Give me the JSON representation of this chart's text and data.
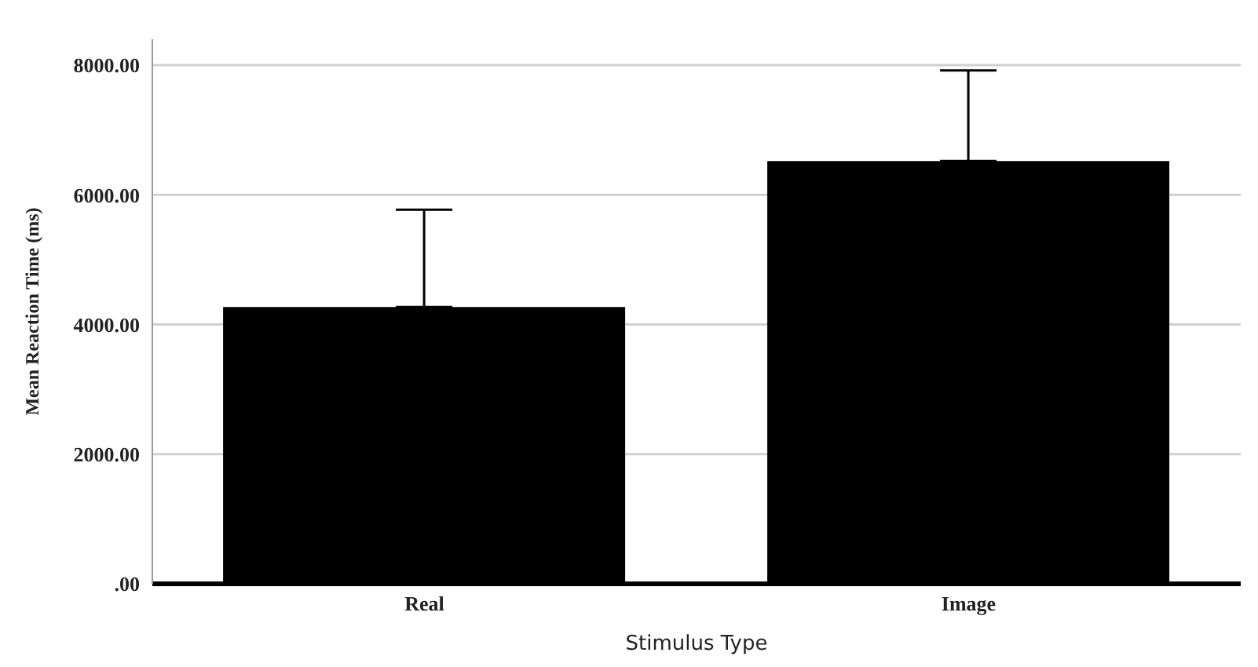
{
  "chart_data": {
    "type": "bar",
    "xlabel": "Stimulus Type",
    "ylabel": "Mean Reaction Time (ms)",
    "categories": [
      "Real",
      "Image"
    ],
    "values": [
      4270,
      6520
    ],
    "errors": [
      [
        4270,
        5770
      ],
      [
        6520,
        7920
      ]
    ],
    "color": "#000000",
    "ylim": [
      0,
      8400
    ],
    "yticks": [
      {
        "value": 0,
        "label": ".00"
      },
      {
        "value": 2000,
        "label": "2000.00"
      },
      {
        "value": 4000,
        "label": "4000.00"
      },
      {
        "value": 6000,
        "label": "6000.00"
      },
      {
        "value": 8000,
        "label": "8000.00"
      }
    ],
    "grid": "y"
  }
}
